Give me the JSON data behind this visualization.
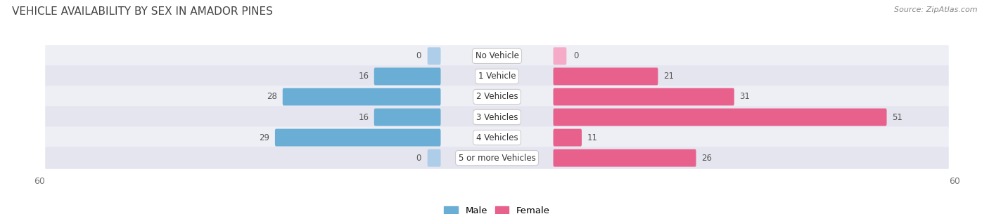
{
  "title": "VEHICLE AVAILABILITY BY SEX IN AMADOR PINES",
  "source": "Source: ZipAtlas.com",
  "categories": [
    "No Vehicle",
    "1 Vehicle",
    "2 Vehicles",
    "3 Vehicles",
    "4 Vehicles",
    "5 or more Vehicles"
  ],
  "male_values": [
    0,
    16,
    28,
    16,
    29,
    0
  ],
  "female_values": [
    0,
    21,
    31,
    51,
    11,
    26
  ],
  "male_color_full": "#6aaed6",
  "male_color_light": "#aecde8",
  "female_color_full": "#e8618c",
  "female_color_light": "#f5aac8",
  "xlim": 60,
  "bar_height": 0.62,
  "row_bg_light": "#eeeff5",
  "row_bg_dark": "#e4e5ef",
  "background_color": "#ffffff",
  "label_fontsize": 8.5,
  "value_fontsize": 8.5,
  "title_fontsize": 11
}
